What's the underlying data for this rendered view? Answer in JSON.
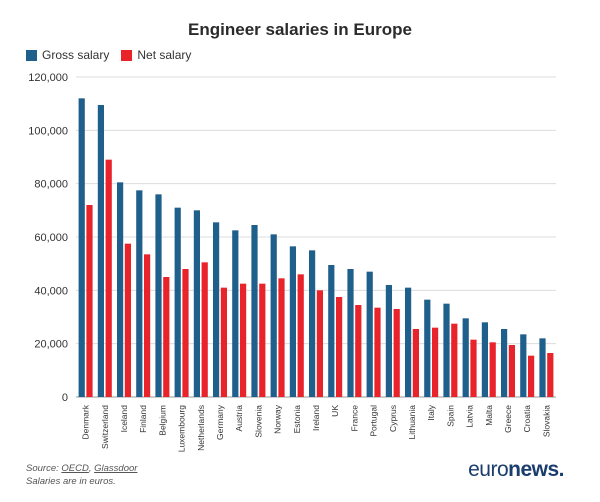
{
  "chart_data": {
    "type": "bar",
    "title": "Engineer salaries in Europe",
    "categories": [
      "Denmark",
      "Switzerland",
      "Iceland",
      "Finland",
      "Belgium",
      "Luxembourg",
      "Netherlands",
      "Germany",
      "Austria",
      "Slovenia",
      "Norway",
      "Estonia",
      "Ireland",
      "UK",
      "France",
      "Portugal",
      "Cyprus",
      "Lithuania",
      "Italy",
      "Spain",
      "Latvia",
      "Malta",
      "Greece",
      "Croatia",
      "Slovakia"
    ],
    "series": [
      {
        "name": "Gross salary",
        "color": "#1f5f8b",
        "values": [
          112000,
          109500,
          80500,
          77500,
          76000,
          71000,
          70000,
          65500,
          62500,
          64500,
          61000,
          56500,
          55000,
          49500,
          48000,
          47000,
          42000,
          41000,
          36500,
          35000,
          29500,
          28000,
          25500,
          23500,
          22000
        ]
      },
      {
        "name": "Net salary",
        "color": "#e8232a",
        "values": [
          72000,
          89000,
          57500,
          53500,
          45000,
          48000,
          50500,
          41000,
          42500,
          42500,
          44500,
          46000,
          40000,
          37500,
          34500,
          33500,
          33000,
          25500,
          26000,
          27500,
          21500,
          20500,
          19500,
          15500,
          16500
        ]
      }
    ],
    "y_ticks": [
      "0",
      "20,000",
      "40,000",
      "60,000",
      "80,000",
      "100,000",
      "120,000"
    ],
    "ylim": [
      0,
      120000
    ],
    "grid": true,
    "legend_position": "top-left"
  },
  "footer": {
    "source_prefix": "Source: ",
    "source_oecd": "OECD",
    "source_sep": ", ",
    "source_glassdoor": "Glassdoor",
    "note": "Salaries are in euros."
  },
  "brand": {
    "part1": "euro",
    "part2": "news",
    "dot": "."
  }
}
